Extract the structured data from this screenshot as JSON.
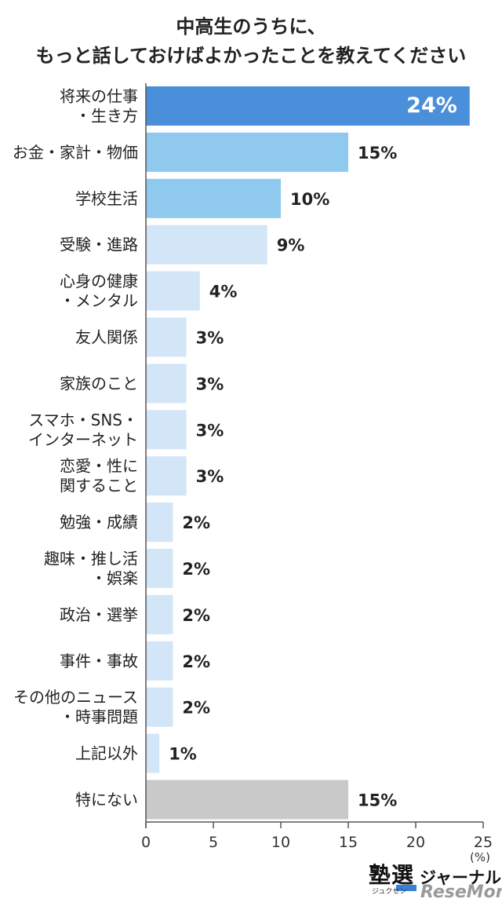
{
  "title": {
    "line1": "中高生のうちに、",
    "line2": "もっと話しておけばよかったことを教えてください"
  },
  "colors": {
    "top": "#4a8fd9",
    "high": "#8fcaee",
    "light": "#d3e6f8",
    "gray": "#c9c9c9",
    "axis": "#555555"
  },
  "logo": {
    "main": "塾選",
    "sub": "ジャーナル",
    "kana": "ジュクセン",
    "resemom": "ReseMom"
  },
  "chart_data": {
    "type": "bar",
    "orientation": "horizontal",
    "categories": [
      [
        "将来の仕事",
        "・生き方"
      ],
      [
        "お金・家計・物価"
      ],
      [
        "学校生活"
      ],
      [
        "受験・進路"
      ],
      [
        "心身の健康",
        "・メンタル"
      ],
      [
        "友人関係"
      ],
      [
        "家族のこと"
      ],
      [
        "スマホ・SNS・",
        "インターネット"
      ],
      [
        "恋愛・性に",
        "関すること"
      ],
      [
        "勉強・成績"
      ],
      [
        "趣味・推し活",
        "・娯楽"
      ],
      [
        "政治・選挙"
      ],
      [
        "事件・事故"
      ],
      [
        "その他のニュース",
        "・時事問題"
      ],
      [
        "上記以外"
      ],
      [
        "特にない"
      ]
    ],
    "values": [
      24,
      15,
      10,
      9,
      4,
      3,
      3,
      3,
      3,
      2,
      2,
      2,
      2,
      2,
      1,
      15
    ],
    "value_labels": [
      "24%",
      "15%",
      "10%",
      "9%",
      "4%",
      "3%",
      "3%",
      "3%",
      "3%",
      "2%",
      "2%",
      "2%",
      "2%",
      "2%",
      "1%",
      "15%"
    ],
    "bar_colors": [
      "top",
      "high",
      "high",
      "light",
      "light",
      "light",
      "light",
      "light",
      "light",
      "light",
      "light",
      "light",
      "light",
      "light",
      "light",
      "gray"
    ],
    "xlim": [
      0,
      25
    ],
    "xticks": [
      0,
      5,
      10,
      15,
      20,
      25
    ],
    "xtick_labels": [
      "0",
      "5",
      "10",
      "15",
      "20",
      "25"
    ],
    "unit_label": "(%)",
    "grid": false
  }
}
